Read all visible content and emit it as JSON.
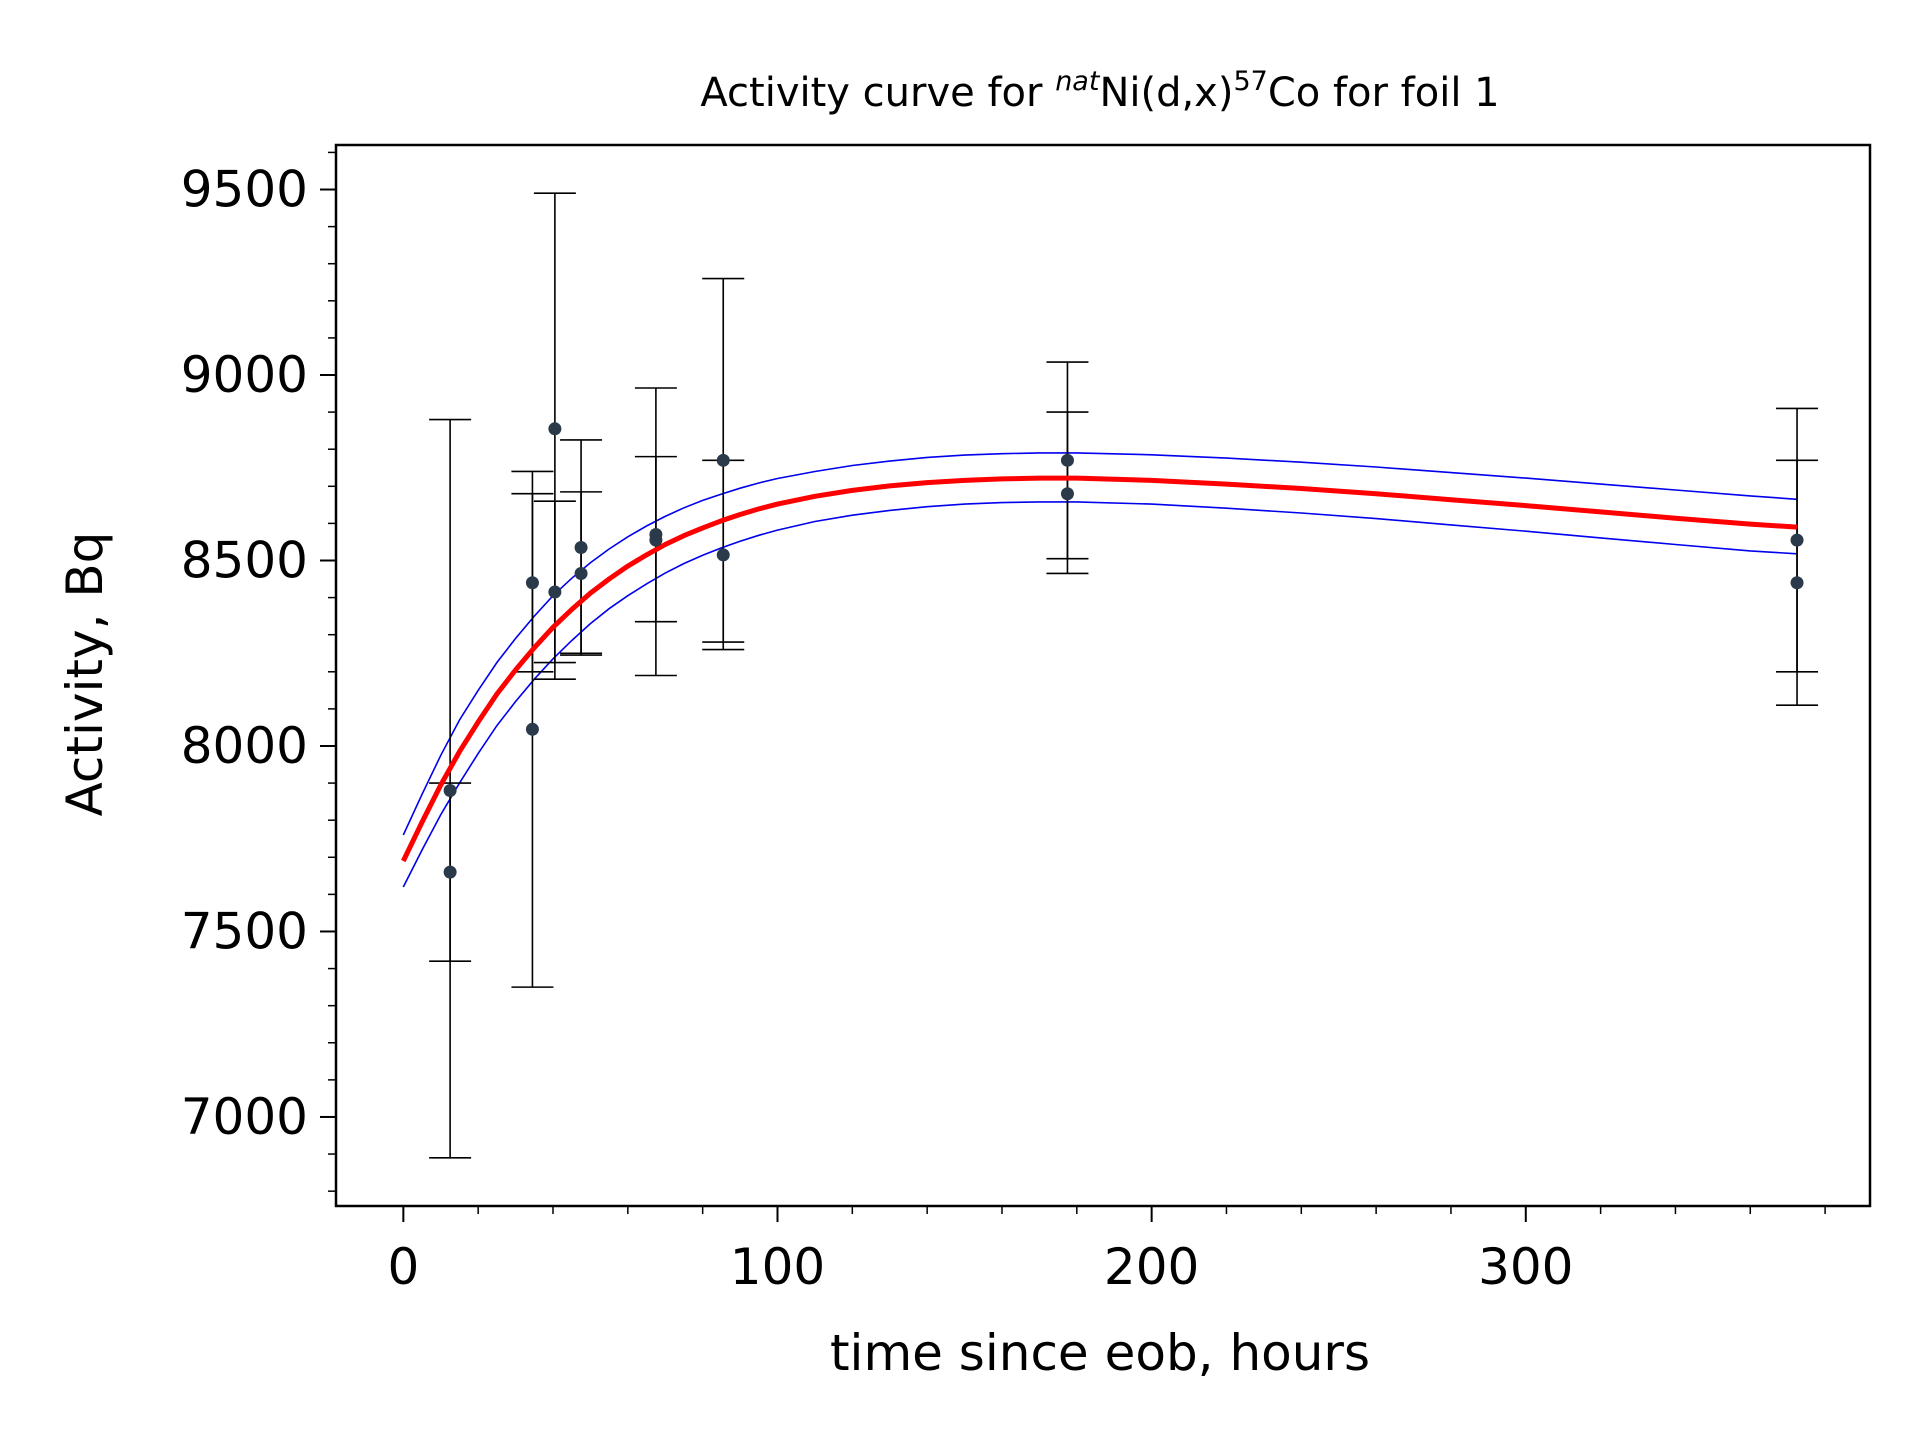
{
  "chart_data": {
    "type": "scatter",
    "title": {
      "pre": "Activity curve for ",
      "sup1": "nat",
      "mid": "Ni(d,x)",
      "sup2": "57",
      "post": "Co for foil 1"
    },
    "xlabel": "time since eob, hours",
    "ylabel": "Activity, Bq",
    "xlim": [
      -18,
      392
    ],
    "ylim": [
      6760,
      9620
    ],
    "x_ticks": [
      {
        "value": 0,
        "label": "0"
      },
      {
        "value": 100,
        "label": "100"
      },
      {
        "value": 200,
        "label": "200"
      },
      {
        "value": 300,
        "label": "300"
      }
    ],
    "y_ticks": [
      {
        "value": 7000,
        "label": "7000"
      },
      {
        "value": 7500,
        "label": "7500"
      },
      {
        "value": 8000,
        "label": "8000"
      },
      {
        "value": 8500,
        "label": "8500"
      },
      {
        "value": 9000,
        "label": "9000"
      },
      {
        "value": 9500,
        "label": "9500"
      }
    ],
    "grid": false,
    "legend": "none",
    "colors": {
      "fit": "#ff0000",
      "confidence_band": "#0000ee",
      "points": "#2b3a4a",
      "errorbars": "#000000"
    },
    "points": [
      {
        "x": 12.5,
        "y": 7880,
        "err_low": 7420,
        "err_high": 8880
      },
      {
        "x": 12.5,
        "y": 7660,
        "err_low": 6890,
        "err_high": 7900
      },
      {
        "x": 34.5,
        "y": 8440,
        "err_low": 8200,
        "err_high": 8680
      },
      {
        "x": 34.5,
        "y": 8045,
        "err_low": 7350,
        "err_high": 8740
      },
      {
        "x": 40.5,
        "y": 8855,
        "err_low": 8225,
        "err_high": 9490
      },
      {
        "x": 40.5,
        "y": 8415,
        "err_low": 8180,
        "err_high": 8660
      },
      {
        "x": 47.5,
        "y": 8535,
        "err_low": 8250,
        "err_high": 8825
      },
      {
        "x": 47.5,
        "y": 8465,
        "err_low": 8245,
        "err_high": 8685
      },
      {
        "x": 67.5,
        "y": 8570,
        "err_low": 8190,
        "err_high": 8965
      },
      {
        "x": 67.5,
        "y": 8555,
        "err_low": 8335,
        "err_high": 8780
      },
      {
        "x": 85.5,
        "y": 8770,
        "err_low": 8280,
        "err_high": 9260
      },
      {
        "x": 85.5,
        "y": 8515,
        "err_low": 8260,
        "err_high": 8770
      },
      {
        "x": 177.5,
        "y": 8770,
        "err_low": 8505,
        "err_high": 9035
      },
      {
        "x": 177.5,
        "y": 8680,
        "err_low": 8465,
        "err_high": 8900
      },
      {
        "x": 372.5,
        "y": 8555,
        "err_low": 8200,
        "err_high": 8910
      },
      {
        "x": 372.5,
        "y": 8440,
        "err_low": 8110,
        "err_high": 8770
      }
    ],
    "fit_curve": {
      "x": [
        0,
        5,
        10,
        15,
        20,
        25,
        30,
        35,
        40,
        45,
        50,
        55,
        60,
        65,
        70,
        75,
        80,
        85,
        90,
        95,
        100,
        110,
        120,
        130,
        140,
        150,
        160,
        170,
        180,
        200,
        220,
        240,
        260,
        280,
        300,
        320,
        340,
        360,
        372.5
      ],
      "y": [
        7690,
        7795,
        7895,
        7985,
        8065,
        8140,
        8205,
        8265,
        8320,
        8368,
        8412,
        8450,
        8485,
        8515,
        8543,
        8567,
        8588,
        8607,
        8624,
        8639,
        8652,
        8673,
        8689,
        8701,
        8710,
        8716,
        8720,
        8722,
        8722,
        8716,
        8706,
        8694,
        8680,
        8664,
        8648,
        8631,
        8614,
        8598,
        8590
      ]
    },
    "upper_band": {
      "x": [
        0,
        5,
        10,
        15,
        20,
        25,
        30,
        35,
        40,
        45,
        50,
        55,
        60,
        65,
        70,
        75,
        80,
        85,
        90,
        95,
        100,
        110,
        120,
        130,
        140,
        150,
        160,
        170,
        180,
        200,
        220,
        240,
        260,
        280,
        300,
        320,
        340,
        360,
        372.5
      ],
      "y": [
        7760,
        7870,
        7975,
        8070,
        8150,
        8225,
        8290,
        8350,
        8405,
        8452,
        8494,
        8531,
        8564,
        8593,
        8619,
        8642,
        8662,
        8679,
        8695,
        8709,
        8721,
        8740,
        8756,
        8768,
        8778,
        8784,
        8788,
        8790,
        8790,
        8785,
        8776,
        8765,
        8752,
        8737,
        8722,
        8706,
        8690,
        8674,
        8665
      ]
    },
    "lower_band": {
      "x": [
        0,
        5,
        10,
        15,
        20,
        25,
        30,
        35,
        40,
        45,
        50,
        55,
        60,
        65,
        70,
        75,
        80,
        85,
        90,
        95,
        100,
        110,
        120,
        130,
        140,
        150,
        160,
        170,
        180,
        200,
        220,
        240,
        260,
        280,
        300,
        320,
        340,
        360,
        372.5
      ],
      "y": [
        7620,
        7720,
        7815,
        7900,
        7980,
        8055,
        8120,
        8180,
        8235,
        8284,
        8330,
        8370,
        8405,
        8437,
        8466,
        8492,
        8514,
        8534,
        8552,
        8568,
        8582,
        8605,
        8622,
        8635,
        8645,
        8652,
        8656,
        8658,
        8658,
        8652,
        8641,
        8628,
        8613,
        8596,
        8579,
        8561,
        8543,
        8526,
        8518
      ]
    }
  }
}
